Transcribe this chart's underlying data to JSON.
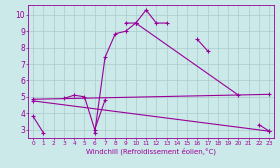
{
  "xlabel": "Windchill (Refroidissement éolien,°C)",
  "background_color": "#cce9e9",
  "grid_color": "#aacccc",
  "line_color": "#990099",
  "xlim": [
    -0.5,
    23.5
  ],
  "ylim": [
    2.5,
    10.6
  ],
  "xticks": [
    0,
    1,
    2,
    3,
    4,
    5,
    6,
    7,
    8,
    9,
    10,
    11,
    12,
    13,
    14,
    15,
    16,
    17,
    18,
    19,
    20,
    21,
    22,
    23
  ],
  "yticks": [
    3,
    4,
    5,
    6,
    7,
    8,
    9,
    10
  ],
  "line1_segments": [
    {
      "x": [
        0,
        1
      ],
      "y": [
        3.8,
        2.8
      ]
    },
    {
      "x": [
        3,
        4,
        5,
        6,
        7
      ],
      "y": [
        4.9,
        5.1,
        5.0,
        3.0,
        4.8
      ]
    },
    {
      "x": [
        9,
        10,
        11,
        12,
        13
      ],
      "y": [
        9.5,
        9.5,
        10.3,
        9.5,
        9.5
      ]
    },
    {
      "x": [
        16,
        17
      ],
      "y": [
        8.5,
        7.8
      ]
    },
    {
      "x": [
        22,
        23
      ],
      "y": [
        3.3,
        2.9
      ]
    }
  ],
  "line2_segments": [
    {
      "x": [
        6,
        7,
        8,
        9,
        10
      ],
      "y": [
        2.8,
        7.4,
        8.85,
        9.0,
        9.5
      ]
    },
    {
      "x": [
        10,
        20
      ],
      "y": [
        9.5,
        5.1
      ]
    }
  ],
  "line3": {
    "x": [
      0,
      23
    ],
    "y": [
      4.85,
      5.15
    ]
  },
  "line4": {
    "x": [
      0,
      23
    ],
    "y": [
      4.75,
      2.9
    ]
  }
}
